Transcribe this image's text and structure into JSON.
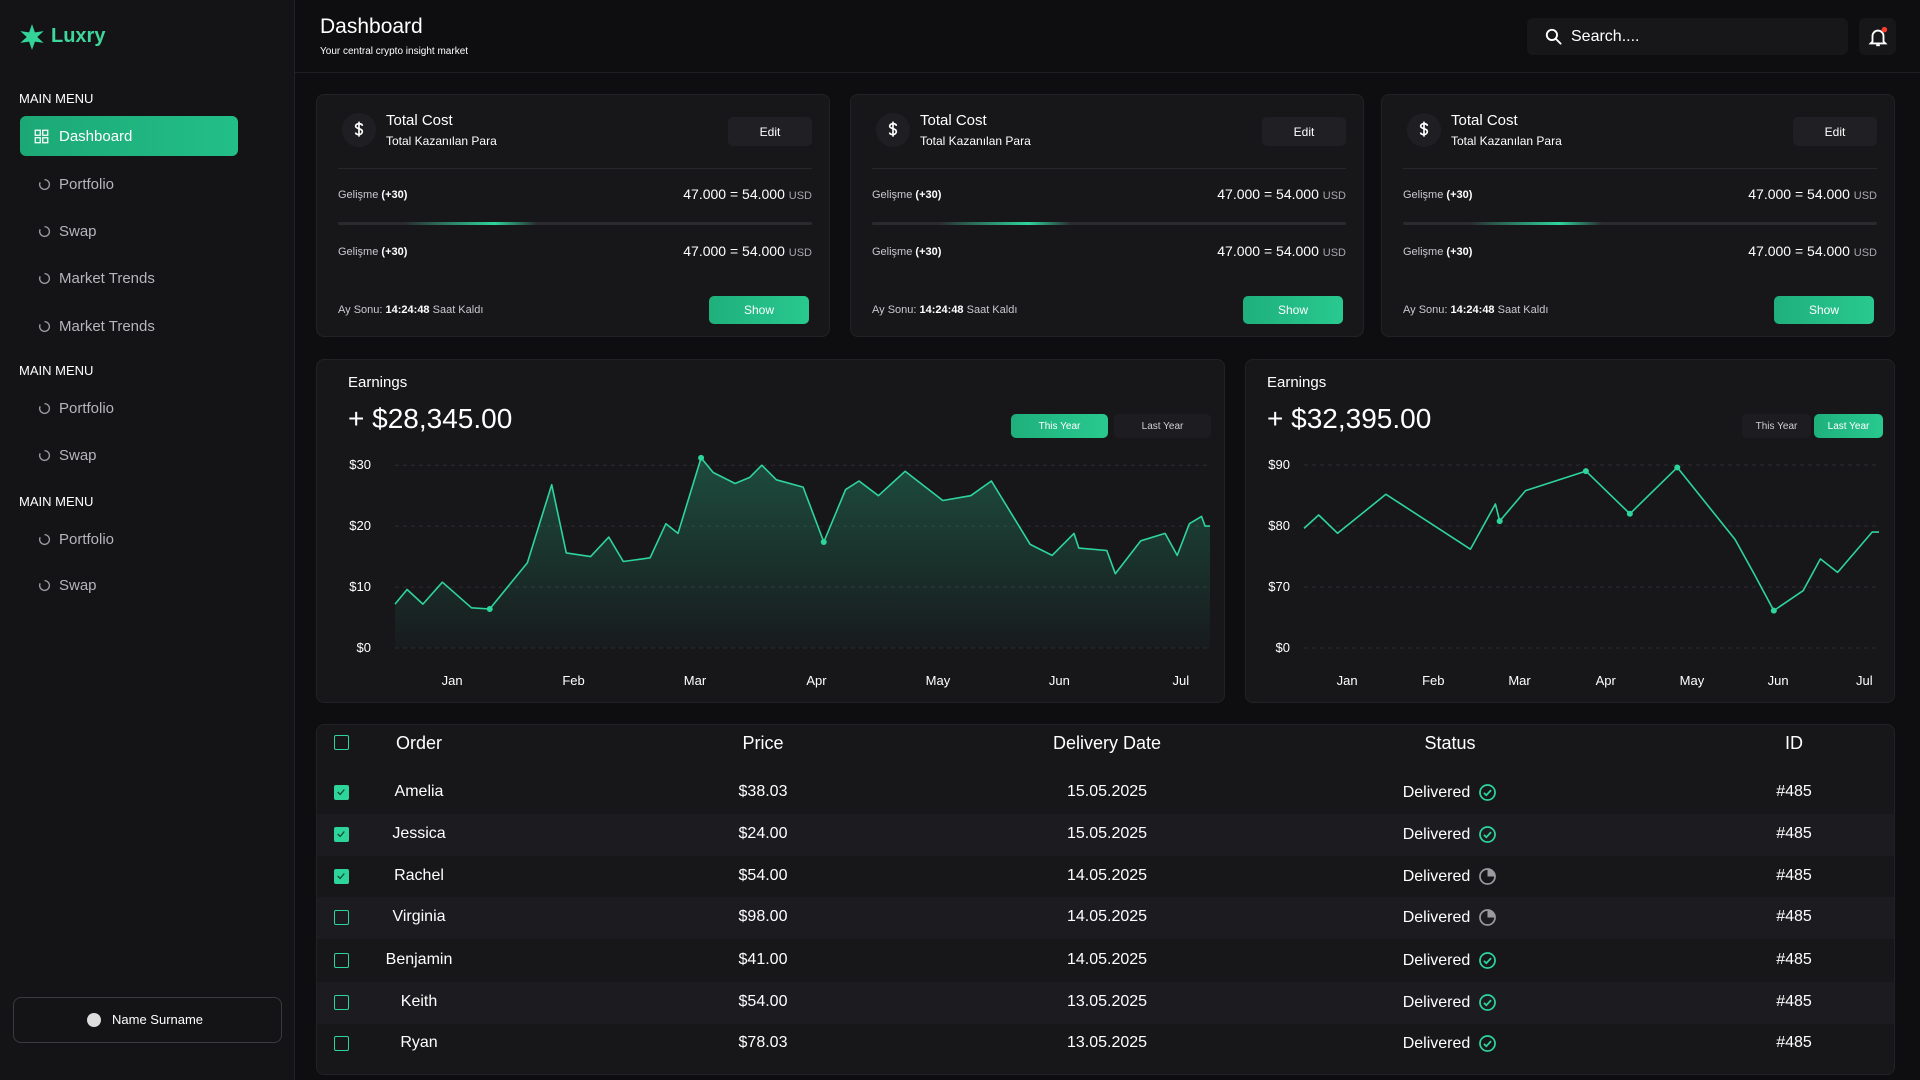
{
  "sidebar": {
    "brand": "Luxry",
    "active_item": [
      0,
      0
    ],
    "sections": [
      {
        "title": "MAIN MENU",
        "items": [
          "Dashboard",
          "Portfolio",
          "Swap",
          "Market Trends",
          "Market Trends"
        ]
      },
      {
        "title": "MAIN MENU",
        "items": [
          "Portfolio",
          "Swap"
        ]
      },
      {
        "title": "MAIN MENU",
        "items": [
          "Portfolio",
          "Swap"
        ]
      }
    ],
    "user": "Name Surname"
  },
  "header": {
    "title": "Dashboard",
    "subtitle": "Your central crypto insight market",
    "search": "Search...."
  },
  "cards": [
    {
      "title": "Total Cost",
      "subtitle": "Total Kazanılan Para",
      "edit": "Edit",
      "rows": [
        {
          "label": "Gelişme",
          "change": "(+30)",
          "value": "47.000 = 54.000",
          "unit": "USD"
        },
        {
          "label": "Gelişme",
          "change": "(+30)",
          "value": "47.000 = 54.000",
          "unit": "USD"
        }
      ],
      "footer_label": "Ay Sonu:",
      "time": "14:24:48",
      "footer_suffix": "Saat Kaldı",
      "button": "Show"
    },
    {
      "title": "Total Cost",
      "subtitle": "Total Kazanılan Para",
      "edit": "Edit",
      "rows": [
        {
          "label": "Gelişme",
          "change": "(+30)",
          "value": "47.000 = 54.000",
          "unit": "USD"
        },
        {
          "label": "Gelişme",
          "change": "(+30)",
          "value": "47.000 = 54.000",
          "unit": "USD"
        }
      ],
      "footer_label": "Ay Sonu:",
      "time": "14:24:48",
      "footer_suffix": "Saat Kaldı",
      "button": "Show"
    },
    {
      "title": "Total Cost",
      "subtitle": "Total Kazanılan Para",
      "edit": "Edit",
      "rows": [
        {
          "label": "Gelişme",
          "change": "(+30)",
          "value": "47.000 = 54.000",
          "unit": "USD"
        },
        {
          "label": "Gelişme",
          "change": "(+30)",
          "value": "47.000 = 54.000",
          "unit": "USD"
        }
      ],
      "footer_label": "Ay Sonu:",
      "time": "14:24:48",
      "footer_suffix": "Saat Kaldı",
      "button": "Show"
    }
  ],
  "chart_data": [
    {
      "type": "area",
      "title": "Earnings",
      "subtitle": "+ $28,345.00",
      "tabs": [
        "This Year",
        "Last Year"
      ],
      "active_tab": 0,
      "color": "#2ed59a",
      "grid": true,
      "markers": [
        5,
        15,
        22
      ],
      "x": [
        0.53,
        0.63,
        0.76,
        0.92,
        1.16,
        1.31,
        1.62,
        1.82,
        1.94,
        2.14,
        2.29,
        2.41,
        2.63,
        2.76,
        2.86,
        3.05,
        3.15,
        3.33,
        3.45,
        3.55,
        3.67,
        3.89,
        4.06,
        4.24,
        4.35,
        4.51,
        4.73,
        5.04,
        5.27,
        5.44,
        5.76,
        5.94,
        6.12,
        6.16,
        6.39,
        6.46,
        6.67,
        6.87,
        6.97,
        7.07,
        7.17,
        7.2,
        7.24
      ],
      "values": [
        7.2,
        9.6,
        7.2,
        10.8,
        6.6,
        6.4,
        14,
        26.8,
        15.6,
        15,
        18.2,
        14.2,
        14.8,
        20.4,
        18.8,
        31.2,
        28.8,
        27,
        28,
        30,
        27.6,
        26.4,
        17.4,
        26,
        27.4,
        25,
        29,
        24.2,
        25,
        27.4,
        17,
        15.2,
        18.8,
        16.4,
        16,
        12.2,
        17.6,
        18.8,
        15.2,
        20.4,
        21.6,
        20,
        20
      ],
      "xlim": [
        0.53,
        7.24
      ],
      "xticks": [
        {
          "value": 1,
          "label": "Jan"
        },
        {
          "value": 2,
          "label": "Feb"
        },
        {
          "value": 3,
          "label": "Mar"
        },
        {
          "value": 4,
          "label": "Apr"
        },
        {
          "value": 5,
          "label": "May"
        },
        {
          "value": 6,
          "label": "Jun"
        },
        {
          "value": 7,
          "label": "Jul"
        }
      ],
      "ylim": [
        0,
        32
      ],
      "yticks": [
        {
          "value": 0,
          "label": "$0"
        },
        {
          "value": 10,
          "label": "$10"
        },
        {
          "value": 20,
          "label": "$20"
        },
        {
          "value": 30,
          "label": "$30"
        }
      ]
    },
    {
      "type": "line",
      "title": "Earnings",
      "subtitle": "+ $32,395.00",
      "tabs": [
        "This Year",
        "Last Year"
      ],
      "active_tab": 1,
      "color": "#2ed59a",
      "grid": true,
      "yscale": "tick-spaced",
      "markers": [
        6,
        8,
        9,
        10,
        13
      ],
      "x": [
        0.5,
        0.67,
        0.89,
        1.45,
        2.43,
        2.72,
        2.77,
        3.07,
        3.77,
        4.28,
        4.83,
        5.5,
        5.72,
        5.95,
        6.29,
        6.49,
        6.69,
        7.09,
        7.17
      ],
      "values": [
        79.6,
        81.8,
        78.8,
        85.2,
        76.2,
        83.6,
        80.8,
        85.8,
        89,
        82,
        89.6,
        77.8,
        72.2,
        42.9,
        65.7,
        74.6,
        72.4,
        79,
        79
      ],
      "xlim": [
        0.5,
        7.17
      ],
      "xticks": [
        {
          "value": 1,
          "label": "Jan"
        },
        {
          "value": 2,
          "label": "Feb"
        },
        {
          "value": 3,
          "label": "Mar"
        },
        {
          "value": 4,
          "label": "Apr"
        },
        {
          "value": 5,
          "label": "May"
        },
        {
          "value": 6,
          "label": "Jun"
        },
        {
          "value": 7,
          "label": "Jul"
        }
      ],
      "ylim": [
        0,
        90
      ],
      "yticks": [
        {
          "value": 0,
          "label": "$0"
        },
        {
          "value": 70,
          "label": "$70"
        },
        {
          "value": 80,
          "label": "$80"
        },
        {
          "value": 90,
          "label": "$90"
        }
      ]
    }
  ],
  "table": {
    "columns": [
      "Order",
      "Price",
      "Delivery Date",
      "Status",
      "ID"
    ],
    "rows": [
      [
        "Amelia",
        "$38.03",
        "15.05.2025",
        "Delivered",
        "#485"
      ],
      [
        "Jessica",
        "$24.00",
        "15.05.2025",
        "Delivered",
        "#485"
      ],
      [
        "Rachel",
        "$54.00",
        "14.05.2025",
        "Delivered",
        "#485"
      ],
      [
        "Virginia",
        "$98.00",
        "14.05.2025",
        "Delivered",
        "#485"
      ],
      [
        "Benjamin",
        "$41.00",
        "14.05.2025",
        "Delivered",
        "#485"
      ],
      [
        "Keith",
        "$54.00",
        "13.05.2025",
        "Delivered",
        "#485"
      ],
      [
        "Ryan",
        "$78.03",
        "13.05.2025",
        "Delivered",
        "#485"
      ]
    ],
    "checked": [
      true,
      true,
      true,
      false,
      false,
      false,
      false
    ],
    "status_icons": [
      "check",
      "check",
      "pending",
      "pending",
      "check",
      "check",
      "check"
    ]
  }
}
